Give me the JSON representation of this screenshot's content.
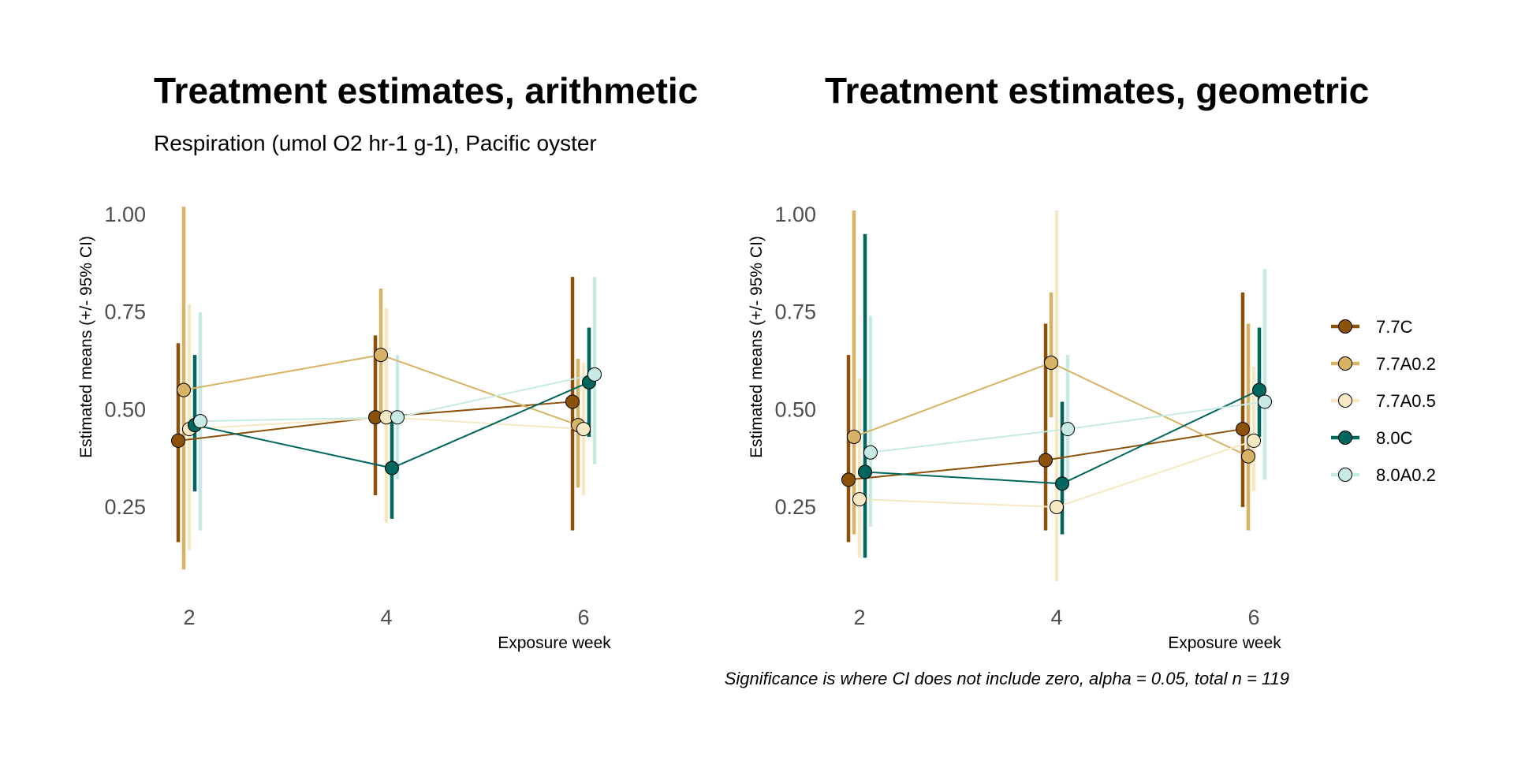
{
  "caption": "Significance is where CI does not include zero, alpha = 0.05, total n = 119",
  "legend": {
    "entries": [
      "7.7C",
      "7.7A0.2",
      "7.7A0.5",
      "8.0C",
      "8.0A0.2"
    ]
  },
  "colors": {
    "7.7C": "#8c510a",
    "7.7A0.2": "#d8b365",
    "7.7A0.5": "#f6e8c3",
    "8.0C": "#01665e",
    "8.0A0.2": "#c7eae5"
  },
  "chart_data": [
    {
      "type": "line",
      "title": "Treatment estimates, arithmetic",
      "subtitle": "Respiration (umol O2 hr-1 g-1), Pacific oyster",
      "xlabel": "Exposure week",
      "ylabel": "Estimated means (+/- 95% CI)",
      "x": [
        2,
        4,
        6
      ],
      "x_ticks": [
        "2",
        "4",
        "6"
      ],
      "y_ticks": [
        "0.25",
        "0.50",
        "0.75",
        "1.00"
      ],
      "ylim": [
        0.04,
        1.06
      ],
      "grid": false,
      "series": [
        {
          "name": "7.7C",
          "values": [
            0.42,
            0.48,
            0.52
          ],
          "lower": [
            0.16,
            0.28,
            0.19
          ],
          "upper": [
            0.67,
            0.69,
            0.84
          ]
        },
        {
          "name": "7.7A0.2",
          "values": [
            0.55,
            0.64,
            0.46
          ],
          "lower": [
            0.09,
            0.47,
            0.3
          ],
          "upper": [
            1.02,
            0.81,
            0.63
          ]
        },
        {
          "name": "7.7A0.5",
          "values": [
            0.45,
            0.48,
            0.45
          ],
          "lower": [
            0.14,
            0.21,
            0.28
          ],
          "upper": [
            0.77,
            0.76,
            0.62
          ]
        },
        {
          "name": "8.0C",
          "values": [
            0.46,
            0.35,
            0.57
          ],
          "lower": [
            0.29,
            0.22,
            0.43
          ],
          "upper": [
            0.64,
            0.47,
            0.71
          ]
        },
        {
          "name": "8.0A0.2",
          "values": [
            0.47,
            0.48,
            0.59
          ],
          "lower": [
            0.19,
            0.32,
            0.36
          ],
          "upper": [
            0.75,
            0.64,
            0.84
          ]
        }
      ]
    },
    {
      "type": "line",
      "title": "Treatment estimates, geometric",
      "subtitle": "",
      "xlabel": "Exposure week",
      "ylabel": "Estimated means (+/- 95% CI)",
      "x": [
        2,
        4,
        6
      ],
      "x_ticks": [
        "2",
        "4",
        "6"
      ],
      "y_ticks": [
        "0.25",
        "0.50",
        "0.75",
        "1.00"
      ],
      "ylim": [
        0.04,
        1.06
      ],
      "grid": false,
      "series": [
        {
          "name": "7.7C",
          "values": [
            0.32,
            0.37,
            0.45
          ],
          "lower": [
            0.16,
            0.19,
            0.25
          ],
          "upper": [
            0.64,
            0.72,
            0.8
          ]
        },
        {
          "name": "7.7A0.2",
          "values": [
            0.43,
            0.62,
            0.38
          ],
          "lower": [
            0.18,
            0.48,
            0.19
          ],
          "upper": [
            1.01,
            0.8,
            0.72
          ]
        },
        {
          "name": "7.7A0.5",
          "values": [
            0.27,
            0.25,
            0.42
          ],
          "lower": [
            0.12,
            0.06,
            0.29
          ],
          "upper": [
            0.58,
            1.01,
            0.61
          ]
        },
        {
          "name": "8.0C",
          "values": [
            0.34,
            0.31,
            0.55
          ],
          "lower": [
            0.12,
            0.18,
            0.43
          ],
          "upper": [
            0.95,
            0.52,
            0.71
          ]
        },
        {
          "name": "8.0A0.2",
          "values": [
            0.39,
            0.45,
            0.52
          ],
          "lower": [
            0.2,
            0.32,
            0.32
          ],
          "upper": [
            0.74,
            0.64,
            0.86
          ]
        }
      ]
    }
  ]
}
